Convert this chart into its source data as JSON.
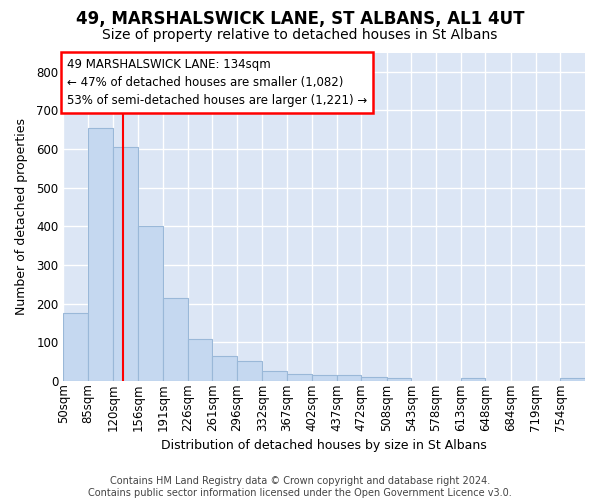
{
  "title": "49, MARSHALSWICK LANE, ST ALBANS, AL1 4UT",
  "subtitle": "Size of property relative to detached houses in St Albans",
  "xlabel": "Distribution of detached houses by size in St Albans",
  "ylabel": "Number of detached properties",
  "bar_values": [
    175,
    655,
    605,
    400,
    215,
    108,
    63,
    50,
    25,
    18,
    16,
    14,
    10,
    8,
    0,
    0,
    8,
    0,
    0,
    0,
    8
  ],
  "bin_edges": [
    50,
    85,
    120,
    156,
    191,
    226,
    261,
    296,
    332,
    367,
    402,
    437,
    472,
    508,
    543,
    578,
    613,
    648,
    684,
    719,
    754,
    789
  ],
  "bin_labels": [
    "50sqm",
    "85sqm",
    "120sqm",
    "156sqm",
    "191sqm",
    "226sqm",
    "261sqm",
    "296sqm",
    "332sqm",
    "367sqm",
    "402sqm",
    "437sqm",
    "472sqm",
    "508sqm",
    "543sqm",
    "578sqm",
    "613sqm",
    "648sqm",
    "684sqm",
    "719sqm",
    "754sqm"
  ],
  "bar_color": "#c5d8f0",
  "bar_edge_color": "#9ab8d8",
  "property_size": 134,
  "annotation_text": "49 MARSHALSWICK LANE: 134sqm\n← 47% of detached houses are smaller (1,082)\n53% of semi-detached houses are larger (1,221) →",
  "annotation_box_color": "white",
  "annotation_box_edgecolor": "red",
  "red_line_color": "red",
  "ylim": [
    0,
    850
  ],
  "yticks": [
    0,
    100,
    200,
    300,
    400,
    500,
    600,
    700,
    800
  ],
  "footer_text": "Contains HM Land Registry data © Crown copyright and database right 2024.\nContains public sector information licensed under the Open Government Licence v3.0.",
  "fig_bg_color": "#ffffff",
  "plot_bg_color": "#dce6f5",
  "grid_color": "#ffffff",
  "title_fontsize": 12,
  "subtitle_fontsize": 10,
  "axis_label_fontsize": 9,
  "tick_fontsize": 8.5,
  "footer_fontsize": 7
}
